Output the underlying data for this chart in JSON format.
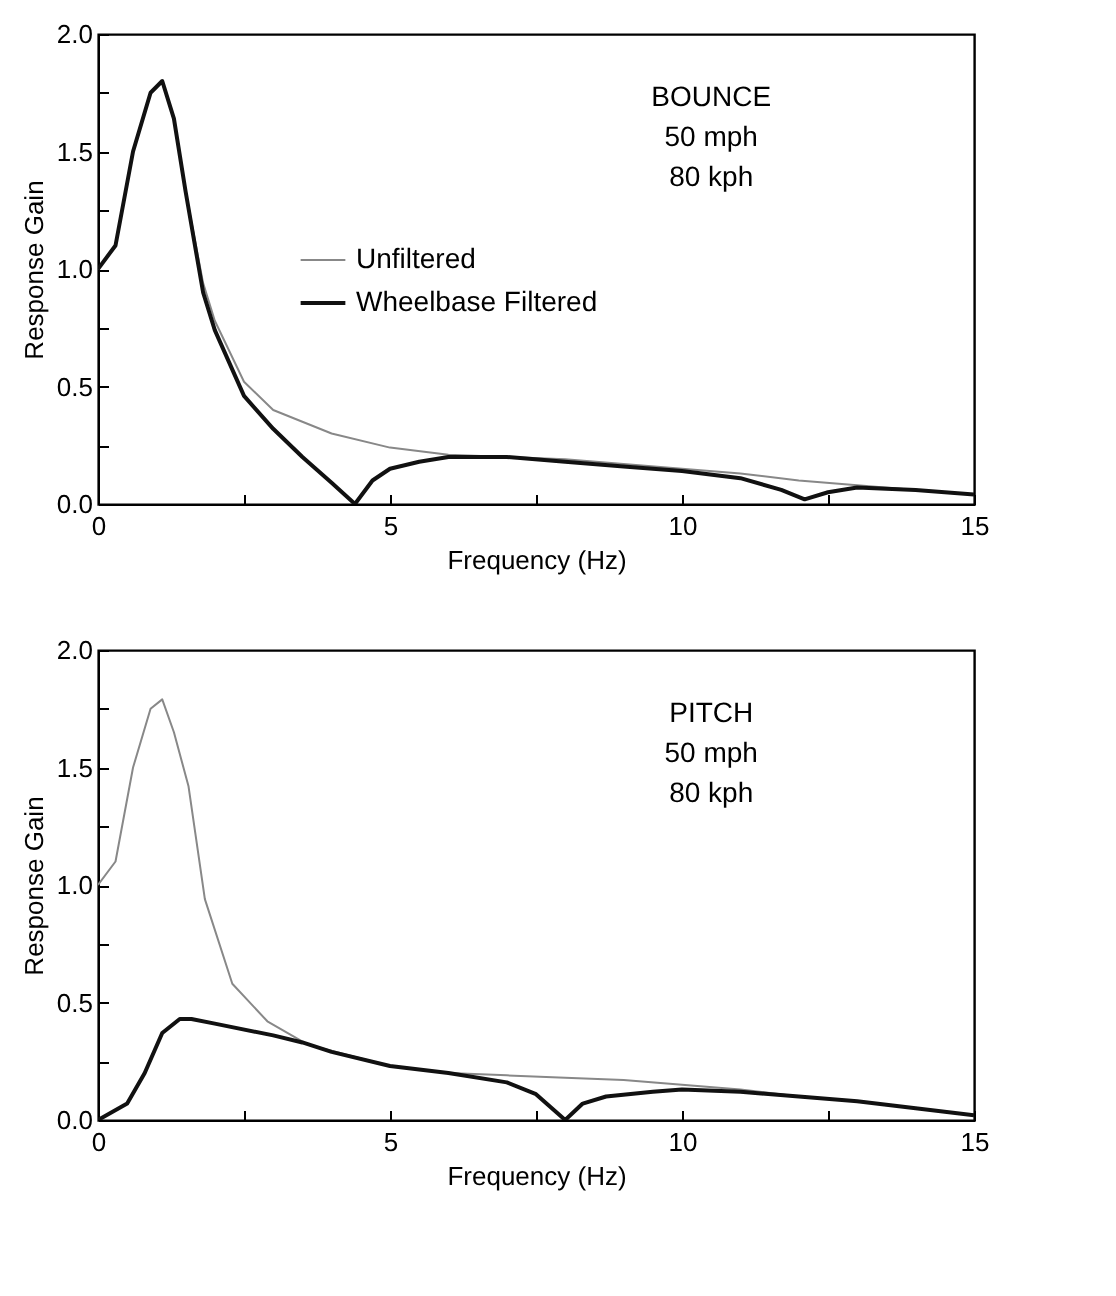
{
  "chart_data": [
    {
      "type": "line",
      "xlabel": "Frequency (Hz)",
      "ylabel": "Response Gain",
      "annotations": [
        "BOUNCE",
        "50 mph",
        "80 kph"
      ],
      "xlim": [
        0,
        15
      ],
      "ylim": [
        0,
        2
      ],
      "xticks": [
        0,
        {
          "value": 2.5,
          "label": null
        },
        5,
        {
          "value": 7.5,
          "label": null
        },
        10,
        {
          "value": 12.5,
          "label": null
        },
        15
      ],
      "yticks": [
        {
          "value": 0,
          "label": "0.0"
        },
        {
          "value": 0.25,
          "label": null
        },
        {
          "value": 0.5,
          "label": "0.5"
        },
        {
          "value": 0.75,
          "label": null
        },
        {
          "value": 1,
          "label": "1.0"
        },
        {
          "value": 1.25,
          "label": null
        },
        {
          "value": 1.5,
          "label": "1.5"
        },
        {
          "value": 1.75,
          "label": null
        },
        {
          "value": 2,
          "label": "2.0"
        }
      ],
      "legend": "left",
      "grid": false,
      "line_style": "solid",
      "marker": "none",
      "series": [
        {
          "name": "Unfiltered",
          "color": "#888888",
          "x": [
            0,
            0.3,
            0.6,
            0.9,
            1.1,
            1.3,
            1.5,
            1.8,
            2,
            2.5,
            3,
            3.5,
            4,
            5,
            6,
            7,
            8,
            9,
            10,
            11,
            12,
            13,
            14,
            15
          ],
          "values": [
            1.0,
            1.1,
            1.5,
            1.75,
            1.8,
            1.64,
            1.33,
            0.94,
            0.78,
            0.52,
            0.4,
            0.35,
            0.3,
            0.24,
            0.21,
            0.2,
            0.19,
            0.17,
            0.15,
            0.13,
            0.1,
            0.08,
            0.06,
            0.04
          ]
        },
        {
          "name": "Wheelbase Filtered",
          "color": "#111111",
          "x": [
            0,
            0.3,
            0.6,
            0.9,
            1.1,
            1.3,
            1.5,
            1.8,
            2,
            2.5,
            3,
            3.5,
            4,
            4.4,
            4.7,
            5,
            5.5,
            6,
            7,
            8,
            9,
            10,
            11,
            11.7,
            12.1,
            12.5,
            13,
            14,
            15
          ],
          "values": [
            1.0,
            1.1,
            1.5,
            1.75,
            1.8,
            1.64,
            1.33,
            0.9,
            0.74,
            0.46,
            0.32,
            0.2,
            0.09,
            0.0,
            0.1,
            0.15,
            0.18,
            0.2,
            0.2,
            0.18,
            0.16,
            0.14,
            0.11,
            0.06,
            0.02,
            0.05,
            0.07,
            0.06,
            0.04
          ]
        }
      ]
    },
    {
      "type": "line",
      "xlabel": "Frequency (Hz)",
      "ylabel": "Response Gain",
      "annotations": [
        "PITCH",
        "50 mph",
        "80 kph"
      ],
      "xlim": [
        0,
        15
      ],
      "ylim": [
        0,
        2
      ],
      "xticks": [
        0,
        {
          "value": 2.5,
          "label": null
        },
        5,
        {
          "value": 7.5,
          "label": null
        },
        10,
        {
          "value": 12.5,
          "label": null
        },
        15
      ],
      "yticks": [
        {
          "value": 0,
          "label": "0.0"
        },
        {
          "value": 0.25,
          "label": null
        },
        {
          "value": 0.5,
          "label": "0.5"
        },
        {
          "value": 0.75,
          "label": null
        },
        {
          "value": 1,
          "label": "1.0"
        },
        {
          "value": 1.25,
          "label": null
        },
        {
          "value": 1.5,
          "label": "1.5"
        },
        {
          "value": 1.75,
          "label": null
        },
        {
          "value": 2,
          "label": "2.0"
        }
      ],
      "legend": "left",
      "grid": false,
      "line_style": "solid",
      "marker": "none",
      "series": [
        {
          "name": "Unfiltered",
          "color": "#888888",
          "x": [
            0,
            0.3,
            0.6,
            0.9,
            1.1,
            1.3,
            1.55,
            1.83,
            2.3,
            2.9,
            3.6,
            5,
            6,
            7,
            8,
            9,
            10,
            11,
            12,
            13,
            14,
            15
          ],
          "values": [
            1.0,
            1.1,
            1.5,
            1.75,
            1.79,
            1.65,
            1.42,
            0.94,
            0.58,
            0.42,
            0.32,
            0.23,
            0.2,
            0.19,
            0.18,
            0.17,
            0.15,
            0.13,
            0.1,
            0.08,
            0.05,
            0.02
          ]
        },
        {
          "name": "Wheelbase Filtered",
          "color": "#111111",
          "x": [
            0,
            0.5,
            0.8,
            1.1,
            1.4,
            1.6,
            2,
            3,
            3.5,
            4,
            5,
            6,
            7,
            7.5,
            8,
            8.3,
            8.7,
            9.5,
            10,
            11,
            12,
            13,
            14,
            15
          ],
          "values": [
            0.0,
            0.07,
            0.2,
            0.37,
            0.43,
            0.43,
            0.41,
            0.36,
            0.33,
            0.29,
            0.23,
            0.2,
            0.16,
            0.11,
            0.0,
            0.07,
            0.1,
            0.12,
            0.13,
            0.12,
            0.1,
            0.08,
            0.05,
            0.02
          ]
        }
      ]
    }
  ]
}
